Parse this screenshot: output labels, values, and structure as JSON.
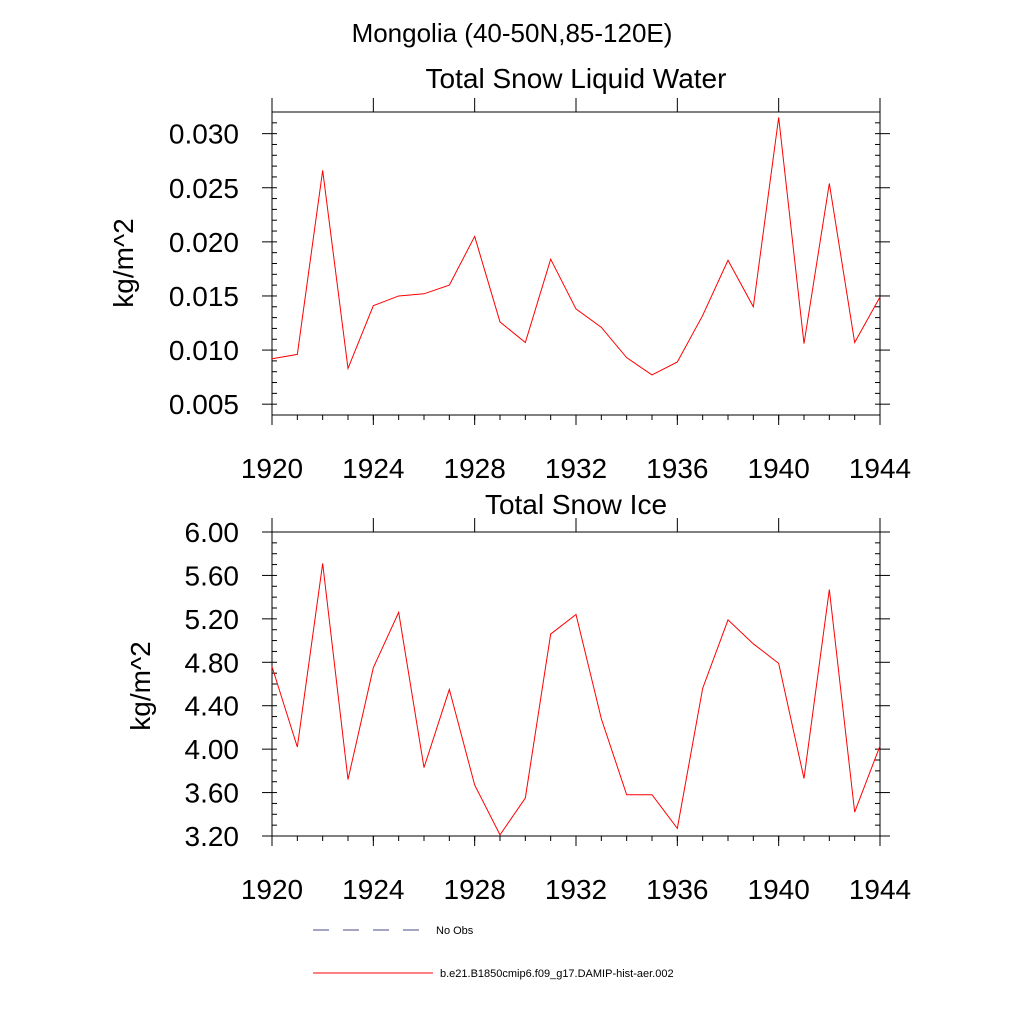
{
  "page_title": "Mongolia (40-50N,85-120E)",
  "legend": {
    "entries": [
      {
        "label": "No Obs",
        "color": "#4a4a8a",
        "style": "dashed"
      },
      {
        "label": "b.e21.B1850cmip6.f09_g17.DAMIP-hist-aer.002",
        "color": "#ff0000",
        "style": "solid"
      }
    ]
  },
  "chart_data": [
    {
      "type": "line",
      "title": "Total Snow Liquid Water",
      "xlabel": "",
      "ylabel": "kg/m^2",
      "xlim": [
        1920,
        1944
      ],
      "ylim": [
        0.004,
        0.032
      ],
      "x_ticks": [
        1920,
        1924,
        1928,
        1932,
        1936,
        1940,
        1944
      ],
      "x_tick_labels": [
        "1920",
        "1924",
        "1928",
        "1932",
        "1936",
        "1940",
        "1944"
      ],
      "y_ticks": [
        0.005,
        0.01,
        0.015,
        0.02,
        0.025,
        0.03
      ],
      "y_tick_labels": [
        "0.005",
        "0.010",
        "0.015",
        "0.020",
        "0.025",
        "0.030"
      ],
      "y_minor_step": 0.001,
      "grid": false,
      "series": [
        {
          "name": "b.e21.B1850cmip6.f09_g17.DAMIP-hist-aer.002",
          "color": "#ff0000",
          "x": [
            1920,
            1921,
            1922,
            1923,
            1924,
            1925,
            1926,
            1927,
            1928,
            1929,
            1930,
            1931,
            1932,
            1933,
            1934,
            1935,
            1936,
            1937,
            1938,
            1939,
            1940,
            1941,
            1942,
            1943,
            1944
          ],
          "values": [
            0.0092,
            0.0096,
            0.0266,
            0.0083,
            0.0141,
            0.015,
            0.0152,
            0.016,
            0.0205,
            0.0126,
            0.0107,
            0.0184,
            0.0138,
            0.0121,
            0.0093,
            0.0077,
            0.0089,
            0.0132,
            0.0183,
            0.014,
            0.0315,
            0.0106,
            0.0254,
            0.0107,
            0.0149
          ]
        }
      ]
    },
    {
      "type": "line",
      "title": "Total Snow Ice",
      "xlabel": "",
      "ylabel": "kg/m^2",
      "xlim": [
        1920,
        1944
      ],
      "ylim": [
        3.2,
        6.0
      ],
      "x_ticks": [
        1920,
        1924,
        1928,
        1932,
        1936,
        1940,
        1944
      ],
      "x_tick_labels": [
        "1920",
        "1924",
        "1928",
        "1932",
        "1936",
        "1940",
        "1944"
      ],
      "y_ticks": [
        3.2,
        3.6,
        4.0,
        4.4,
        4.8,
        5.2,
        5.6,
        6.0
      ],
      "y_tick_labels": [
        "3.20",
        "3.60",
        "4.00",
        "4.40",
        "4.80",
        "5.20",
        "5.60",
        "6.00"
      ],
      "y_minor_step": 0.1,
      "grid": false,
      "series": [
        {
          "name": "b.e21.B1850cmip6.f09_g17.DAMIP-hist-aer.002",
          "color": "#ff0000",
          "x": [
            1920,
            1921,
            1922,
            1923,
            1924,
            1925,
            1926,
            1927,
            1928,
            1929,
            1930,
            1931,
            1932,
            1933,
            1934,
            1935,
            1936,
            1937,
            1938,
            1939,
            1940,
            1941,
            1942,
            1943,
            1944
          ],
          "values": [
            4.76,
            4.02,
            5.71,
            3.72,
            4.75,
            5.26,
            3.83,
            4.55,
            3.67,
            3.21,
            3.55,
            5.06,
            5.24,
            4.28,
            3.58,
            3.58,
            3.27,
            4.56,
            5.19,
            4.97,
            4.79,
            3.73,
            5.47,
            3.42,
            4.03
          ]
        }
      ]
    }
  ]
}
